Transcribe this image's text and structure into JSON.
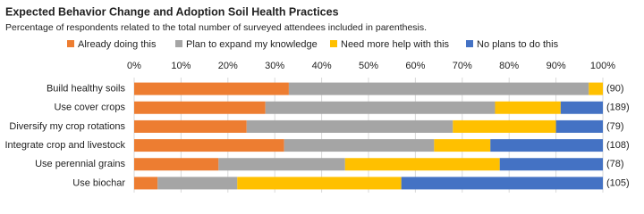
{
  "chart_data": {
    "type": "stacked_barh",
    "title": "Expected Behavior Change and Adoption Soil Health Practices",
    "subtitle": "Percentage of respondents related to the total number of surveyed attendees included in parenthesis.",
    "categories": [
      "Build healthy soils",
      "Use cover crops",
      "Diversify my crop rotations",
      "Integrate crop and livestock",
      "Use perennial grains",
      "Use biochar"
    ],
    "annotations": [
      "(90)",
      "(189)",
      "(79)",
      "(108)",
      "(78)",
      "(105)"
    ],
    "series": [
      {
        "name": "Already doing this",
        "color": "#ED7D31",
        "values": [
          33,
          28,
          24,
          32,
          18,
          5
        ]
      },
      {
        "name": "Plan to expand my knowledge",
        "color": "#A5A5A5",
        "values": [
          64,
          49,
          44,
          32,
          27,
          17
        ]
      },
      {
        "name": "Need more help with this",
        "color": "#FFC000",
        "values": [
          3,
          14,
          22,
          12,
          33,
          35
        ]
      },
      {
        "name": "No plans to do this",
        "color": "#4472C4",
        "values": [
          0,
          9,
          10,
          24,
          22,
          43
        ]
      }
    ],
    "xlim": [
      0,
      100
    ],
    "xticks": [
      {
        "value": 0,
        "label": "0%"
      },
      {
        "value": 10,
        "label": "10%"
      },
      {
        "value": 20,
        "label": "20%"
      },
      {
        "value": 30,
        "label": "30%"
      },
      {
        "value": 40,
        "label": "40%"
      },
      {
        "value": 50,
        "label": "50%"
      },
      {
        "value": 60,
        "label": "60%"
      },
      {
        "value": 70,
        "label": "70%"
      },
      {
        "value": 80,
        "label": "80%"
      },
      {
        "value": 90,
        "label": "90%"
      },
      {
        "value": 100,
        "label": "100%"
      }
    ],
    "grid": true,
    "legend": "top"
  }
}
